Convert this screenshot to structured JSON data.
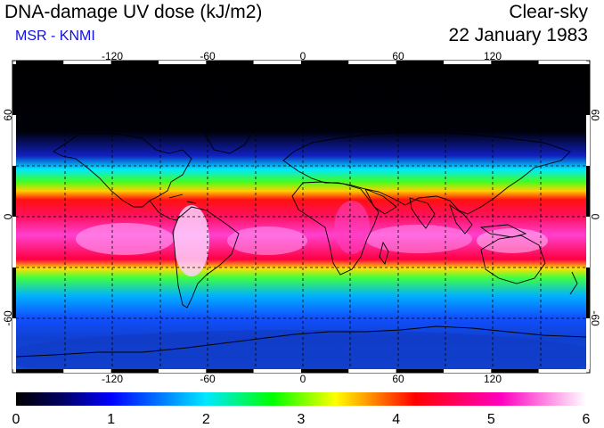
{
  "header": {
    "title": "DNA-damage UV dose (kJ/m2)",
    "subtitle": "MSR - KNMI",
    "condition": "Clear-sky",
    "date": "22 January 1983"
  },
  "map": {
    "projection": "equirectangular",
    "lon_range": [
      -180,
      180
    ],
    "lat_range": [
      -90,
      90
    ],
    "gridlines": "dashed",
    "coastlines": true,
    "lon_ticks": [
      "-120",
      "-60",
      "0",
      "60",
      "120"
    ],
    "lat_ticks": [
      "60",
      "0",
      "-60"
    ]
  },
  "colorbar": {
    "ticks": [
      "0",
      "1",
      "2",
      "3",
      "4",
      "5",
      "6"
    ],
    "range": [
      0,
      6
    ],
    "colors": [
      "#000000",
      "#0000ff",
      "#00e8ff",
      "#00ff00",
      "#ffff00",
      "#ff0000",
      "#ff00c0",
      "#ffffff"
    ]
  }
}
